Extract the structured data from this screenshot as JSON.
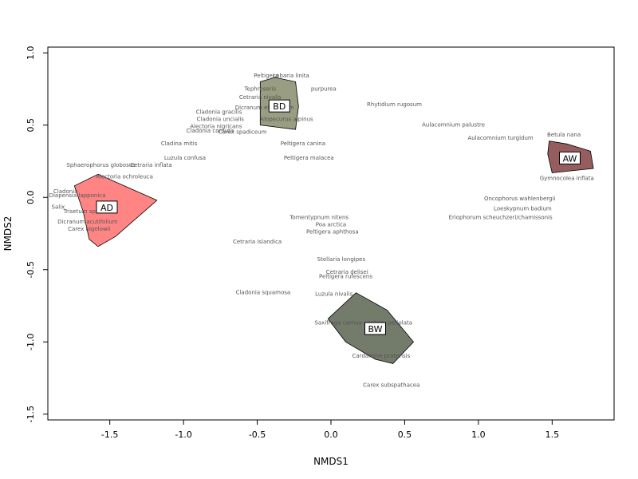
{
  "chart_data": {
    "type": "scatter",
    "xlabel": "NMDS1",
    "ylabel": "NMDS2",
    "xlim": [
      -1.92,
      1.92
    ],
    "ylim": [
      -1.54,
      1.04
    ],
    "xticks": [
      -1.5,
      -1.0,
      -0.5,
      0.0,
      0.5,
      1.0,
      1.5
    ],
    "yticks": [
      -1.5,
      -1.0,
      -0.5,
      0.0,
      0.5,
      1.0
    ],
    "xtick_labels": [
      "-1.5",
      "-1.0",
      "-0.5",
      "0.0",
      "0.5",
      "1.0",
      "1.5"
    ],
    "ytick_labels": [
      "-1.5",
      "-1.0",
      "-0.5",
      "0.0",
      "0.5",
      "1.0"
    ],
    "grid": false,
    "groups": [
      {
        "label": "AD",
        "color": "#ff6666",
        "center": [
          -1.52,
          -0.07
        ],
        "hull": [
          [
            -1.58,
            0.16
          ],
          [
            -1.18,
            -0.02
          ],
          [
            -1.46,
            -0.27
          ],
          [
            -1.58,
            -0.34
          ],
          [
            -1.64,
            -0.29
          ],
          [
            -1.68,
            -0.1
          ],
          [
            -1.74,
            0.08
          ]
        ]
      },
      {
        "label": "BD",
        "color": "#7f8563",
        "center": [
          -0.35,
          0.63
        ],
        "hull": [
          [
            -0.48,
            0.8
          ],
          [
            -0.38,
            0.83
          ],
          [
            -0.24,
            0.8
          ],
          [
            -0.22,
            0.63
          ],
          [
            -0.24,
            0.47
          ],
          [
            -0.48,
            0.5
          ]
        ]
      },
      {
        "label": "AW",
        "color": "#7a3535",
        "center": [
          1.62,
          0.27
        ],
        "hull": [
          [
            1.48,
            0.39
          ],
          [
            1.6,
            0.37
          ],
          [
            1.76,
            0.32
          ],
          [
            1.78,
            0.2
          ],
          [
            1.5,
            0.17
          ],
          [
            1.47,
            0.3
          ]
        ]
      },
      {
        "label": "BW",
        "color": "#505a45",
        "center": [
          0.3,
          -0.91
        ],
        "hull": [
          [
            -0.02,
            -0.84
          ],
          [
            0.17,
            -0.66
          ],
          [
            0.38,
            -0.78
          ],
          [
            0.56,
            -1.0
          ],
          [
            0.42,
            -1.15
          ],
          [
            0.3,
            -1.12
          ],
          [
            0.1,
            -1.0
          ]
        ]
      }
    ],
    "points": [
      {
        "label": "Lobaria linita",
        "x": -0.27,
        "y": 0.83
      },
      {
        "label": "Peltigera",
        "x": -0.44,
        "y": 0.83
      },
      {
        "label": "Tephroseris",
        "x": -0.48,
        "y": 0.74
      },
      {
        "label": "purpurea",
        "x": -0.05,
        "y": 0.74
      },
      {
        "label": "Cetraria nivalis",
        "x": -0.48,
        "y": 0.68
      },
      {
        "label": "Cladonia gracilis",
        "x": -0.76,
        "y": 0.58
      },
      {
        "label": "Cladonia uncialis",
        "x": -0.75,
        "y": 0.53
      },
      {
        "label": "Dicranum elongatum",
        "x": -0.45,
        "y": 0.61
      },
      {
        "label": "Alopecurus alpinus",
        "x": -0.3,
        "y": 0.53
      },
      {
        "label": "Alectoria nigricans",
        "x": -0.78,
        "y": 0.48
      },
      {
        "label": "Cladonia cornuta",
        "x": -0.82,
        "y": 0.45
      },
      {
        "label": "Carex spadiceum",
        "x": -0.6,
        "y": 0.44
      },
      {
        "label": "Cladina mitis",
        "x": -1.03,
        "y": 0.36
      },
      {
        "label": "Peltigera canina",
        "x": -0.19,
        "y": 0.36
      },
      {
        "label": "Rhytidium rugosum",
        "x": 0.43,
        "y": 0.63
      },
      {
        "label": "Peltigera malacea",
        "x": -0.15,
        "y": 0.26
      },
      {
        "label": "Luzula confusa",
        "x": -0.99,
        "y": 0.26
      },
      {
        "label": "Sphaerophorus globosus",
        "x": -1.56,
        "y": 0.21
      },
      {
        "label": "Cetraria inflata",
        "x": -1.22,
        "y": 0.21
      },
      {
        "label": "Alectoria ochroleuca",
        "x": -1.4,
        "y": 0.13
      },
      {
        "label": "Aulacomnium palustre",
        "x": 0.83,
        "y": 0.49
      },
      {
        "label": "Aulacomnium turgidum",
        "x": 1.15,
        "y": 0.4
      },
      {
        "label": "Betula nana",
        "x": 1.58,
        "y": 0.42
      },
      {
        "label": "Gymnocolea inflata",
        "x": 1.6,
        "y": 0.12
      },
      {
        "label": "Oncophorus wahlenbergii",
        "x": 1.28,
        "y": -0.02
      },
      {
        "label": "Loeskypnum badium",
        "x": 1.3,
        "y": -0.09
      },
      {
        "label": "Eriophorum scheuchzeri/chamissonis",
        "x": 1.15,
        "y": -0.15
      },
      {
        "label": "Tomentypnum nitens",
        "x": -0.08,
        "y": -0.15
      },
      {
        "label": "Poa arctica",
        "x": 0.0,
        "y": -0.2
      },
      {
        "label": "Peltigera aphthosa",
        "x": 0.01,
        "y": -0.25
      },
      {
        "label": "Cetraria islandica",
        "x": -0.5,
        "y": -0.32
      },
      {
        "label": "Stellaria longipes",
        "x": 0.07,
        "y": -0.44
      },
      {
        "label": "Cetraria delisei",
        "x": 0.11,
        "y": -0.53
      },
      {
        "label": "Peltigera rufescens",
        "x": 0.1,
        "y": -0.56
      },
      {
        "label": "Cladonia squamosa",
        "x": -0.46,
        "y": -0.67
      },
      {
        "label": "Luzula nivalis",
        "x": 0.02,
        "y": -0.68
      },
      {
        "label": "Saxifraga cernua",
        "x": 0.05,
        "y": -0.88
      },
      {
        "label": "subsp. petiolata",
        "x": 0.4,
        "y": -0.88
      },
      {
        "label": "Cardamine pratensis",
        "x": 0.34,
        "y": -1.11
      },
      {
        "label": "Carex subspathacea",
        "x": 0.41,
        "y": -1.31
      },
      {
        "label": "Trisetum spicatum",
        "x": -1.64,
        "y": -0.11
      },
      {
        "label": "Dicranum acutifolium",
        "x": -1.65,
        "y": -0.18
      },
      {
        "label": "Carex bigelowii",
        "x": -1.64,
        "y": -0.23
      },
      {
        "label": "Cladonia",
        "x": -1.8,
        "y": 0.03
      },
      {
        "label": "Diapensia lapponica",
        "x": -1.72,
        "y": 0.0
      },
      {
        "label": "Salix",
        "x": -1.85,
        "y": -0.08
      }
    ]
  }
}
